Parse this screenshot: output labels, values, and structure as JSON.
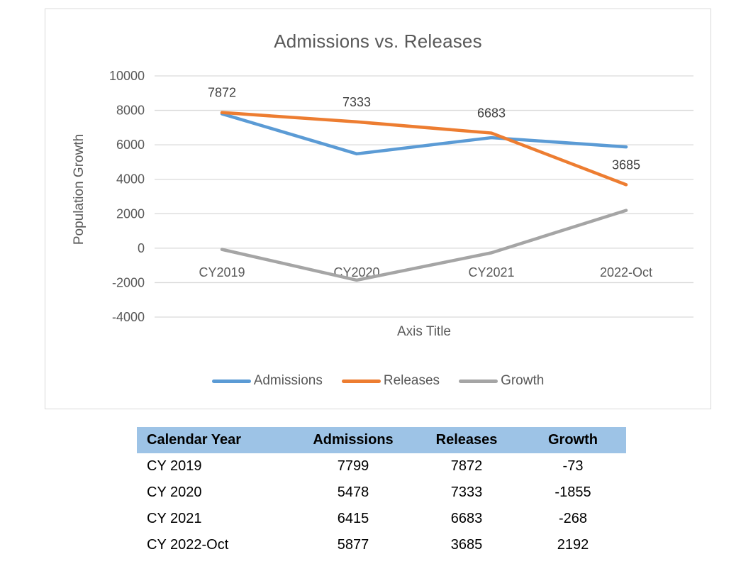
{
  "chart_data": {
    "type": "line",
    "title": "Admissions vs. Releases",
    "xlabel": "Axis Title",
    "ylabel": "Population Growth",
    "categories": [
      "CY2019",
      "CY2020",
      "CY2021",
      "2022-Oct"
    ],
    "series": [
      {
        "name": "Admissions",
        "color": "#5B9BD5",
        "values": [
          7799,
          5478,
          6415,
          5877
        ],
        "data_labels": false
      },
      {
        "name": "Releases",
        "color": "#ED7D31",
        "values": [
          7872,
          7333,
          6683,
          3685
        ],
        "data_labels": true
      },
      {
        "name": "Growth",
        "color": "#A5A5A5",
        "values": [
          -73,
          -1855,
          -268,
          2192
        ],
        "data_labels": false
      }
    ],
    "ylim": [
      -4000,
      10000
    ],
    "y_ticks": [
      10000,
      8000,
      6000,
      4000,
      2000,
      0,
      -2000,
      -4000
    ],
    "grid": true,
    "legend_position": "bottom",
    "colors": {
      "grid": "#D9D9D9",
      "axis_text": "#595959",
      "data_label": "#404040"
    }
  },
  "table": {
    "header_bg": "#9DC3E6",
    "headers": [
      "Calendar Year",
      "Admissions",
      "Releases",
      "Growth"
    ],
    "rows": [
      [
        "CY 2019",
        "7799",
        "7872",
        "-73"
      ],
      [
        "CY 2020",
        "5478",
        "7333",
        "-1855"
      ],
      [
        "CY 2021",
        "6415",
        "6683",
        "-268"
      ],
      [
        "CY 2022-Oct",
        "5877",
        "3685",
        "2192"
      ]
    ]
  }
}
